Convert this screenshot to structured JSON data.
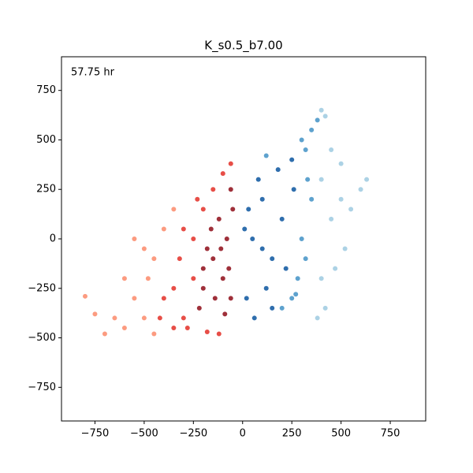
{
  "chart_data": {
    "type": "scatter",
    "title": "K_s0.5_b7.00",
    "annotation": "57.75 hr",
    "xlim": [
      -920,
      930
    ],
    "ylim": [
      -920,
      920
    ],
    "xticks": [
      {
        "value": -750,
        "label": "−750"
      },
      {
        "value": -500,
        "label": "−500"
      },
      {
        "value": -250,
        "label": "−250"
      },
      0,
      250,
      500,
      750
    ],
    "yticks": [
      {
        "value": -750,
        "label": "−750"
      },
      {
        "value": -500,
        "label": "−500"
      },
      {
        "value": -250,
        "label": "−250"
      },
      0,
      250,
      500,
      750
    ],
    "series": [
      {
        "color": "#fc8a6a",
        "x": [
          -500,
          -600,
          -550,
          -450,
          -650,
          -700,
          -400,
          -480,
          -750,
          -500,
          -350,
          -600,
          -800,
          -450,
          -550
        ],
        "y": [
          -400,
          -450,
          -300,
          -100,
          -400,
          -480,
          50,
          -200,
          -380,
          -50,
          150,
          -200,
          -290,
          -480,
          0
        ]
      },
      {
        "color": "#e32f27",
        "x": [
          -300,
          -350,
          -250,
          -280,
          -200,
          -320,
          -150,
          -100,
          -400,
          -180,
          -250,
          -350,
          -60,
          -300,
          -120,
          -420,
          -230
        ],
        "y": [
          -400,
          -250,
          0,
          -450,
          150,
          -100,
          250,
          330,
          -300,
          -470,
          -200,
          -450,
          380,
          50,
          -480,
          -400,
          200
        ]
      },
      {
        "color": "#8e0c18",
        "x": [
          -150,
          -100,
          -80,
          -200,
          -60,
          -120,
          -180,
          -90,
          -220,
          -50,
          -140,
          -70,
          -160,
          -110,
          -200,
          -60
        ],
        "y": [
          -100,
          -200,
          0,
          -250,
          -300,
          100,
          -50,
          -380,
          -350,
          150,
          -300,
          -150,
          50,
          -50,
          -150,
          250
        ]
      },
      {
        "color": "#9ecae1",
        "x": [
          400,
          450,
          400,
          500,
          420,
          380,
          450,
          400,
          550,
          600,
          470,
          520,
          420,
          630,
          500
        ],
        "y": [
          300,
          100,
          -200,
          200,
          -350,
          -400,
          450,
          650,
          150,
          250,
          -150,
          -50,
          620,
          300,
          380
        ]
      },
      {
        "color": "#4292c6",
        "x": [
          300,
          280,
          320,
          350,
          200,
          250,
          300,
          350,
          320,
          120,
          330,
          380,
          270
        ],
        "y": [
          0,
          -200,
          450,
          200,
          -350,
          -300,
          500,
          550,
          -100,
          420,
          300,
          600,
          -280
        ]
      },
      {
        "color": "#0b559f",
        "x": [
          50,
          100,
          150,
          20,
          80,
          200,
          120,
          30,
          180,
          250,
          60,
          150,
          220,
          10,
          100,
          260
        ],
        "y": [
          0,
          200,
          -100,
          -300,
          300,
          100,
          -250,
          150,
          350,
          400,
          -400,
          -350,
          -150,
          50,
          -50,
          250
        ]
      }
    ]
  }
}
